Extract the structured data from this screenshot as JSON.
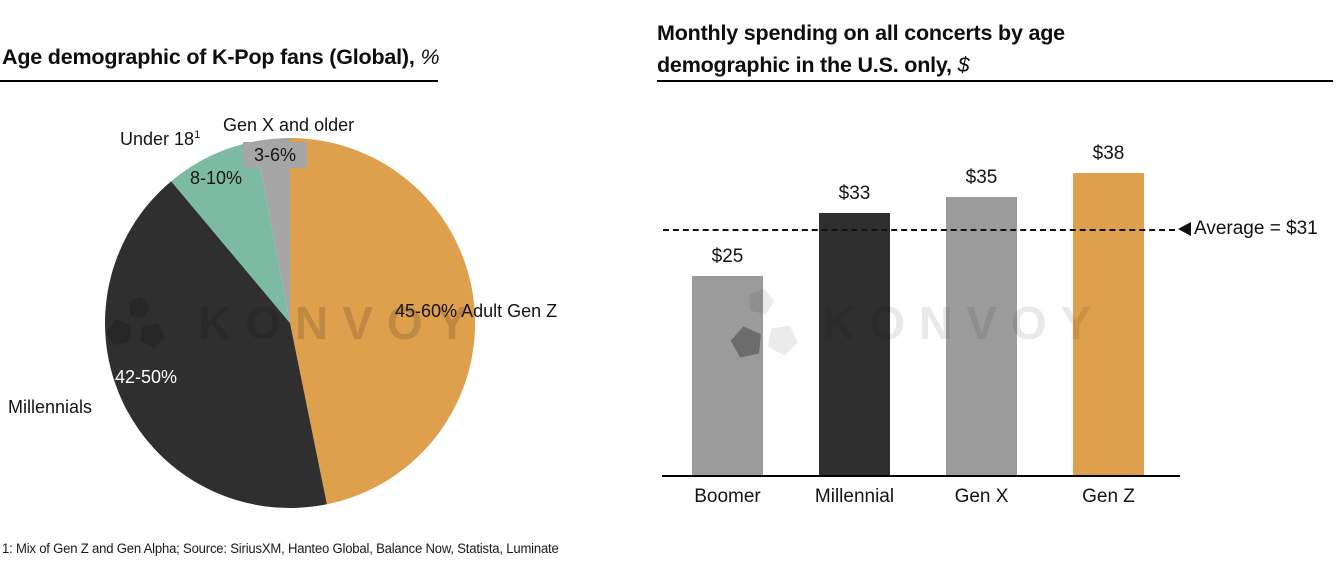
{
  "left_chart": {
    "title": "Age demographic of K-Pop fans (Global),",
    "title_suffix": "%",
    "chart_data": {
      "type": "pie",
      "title": "Age demographic of K-Pop fans (Global), %",
      "start_angle_deg": 0,
      "direction": "clockwise",
      "slices": [
        {
          "label": "Adult Gen Z",
          "value_label": "45-60%",
          "value_range_pct": [
            45,
            60
          ],
          "fraction": 0.468,
          "color": "#DFA04E"
        },
        {
          "label": "Millennials",
          "value_label": "42-50%",
          "value_range_pct": [
            42,
            50
          ],
          "fraction": 0.421,
          "color": "#2F2F2F"
        },
        {
          "label": "Under 18",
          "footnote_marker": "1",
          "value_label": "8-10%",
          "value_range_pct": [
            8,
            10
          ],
          "fraction": 0.081,
          "color": "#7CBAA3"
        },
        {
          "label": "Gen X and older",
          "value_label": "3-6%",
          "value_range_pct": [
            3,
            6
          ],
          "fraction": 0.03,
          "color": "#A6A6A6"
        }
      ]
    }
  },
  "right_chart": {
    "title_line1": "Monthly spending on all concerts by age",
    "title_line2": "demographic in the U.S. only,",
    "title_suffix": "$",
    "chart_data": {
      "type": "bar",
      "categories": [
        "Boomer",
        "Millennial",
        "Gen X",
        "Gen Z"
      ],
      "values": [
        25,
        33,
        35,
        38
      ],
      "value_labels": [
        "$25",
        "$33",
        "$35",
        "$38"
      ],
      "colors": [
        "#9B9B9B",
        "#2F2F2F",
        "#9B9B9B",
        "#DFA04E"
      ],
      "ylim": [
        0,
        40
      ],
      "grid": false,
      "average_line": {
        "value": 31,
        "label": "Average = $31",
        "style": "dashed"
      }
    }
  },
  "watermark": {
    "text": "KONVOY"
  },
  "footer": {
    "text": "1: Mix of Gen Z and Gen Alpha; Source: SiriusXM, Hanteo Global, Balance Now, Statista, Luminate"
  }
}
